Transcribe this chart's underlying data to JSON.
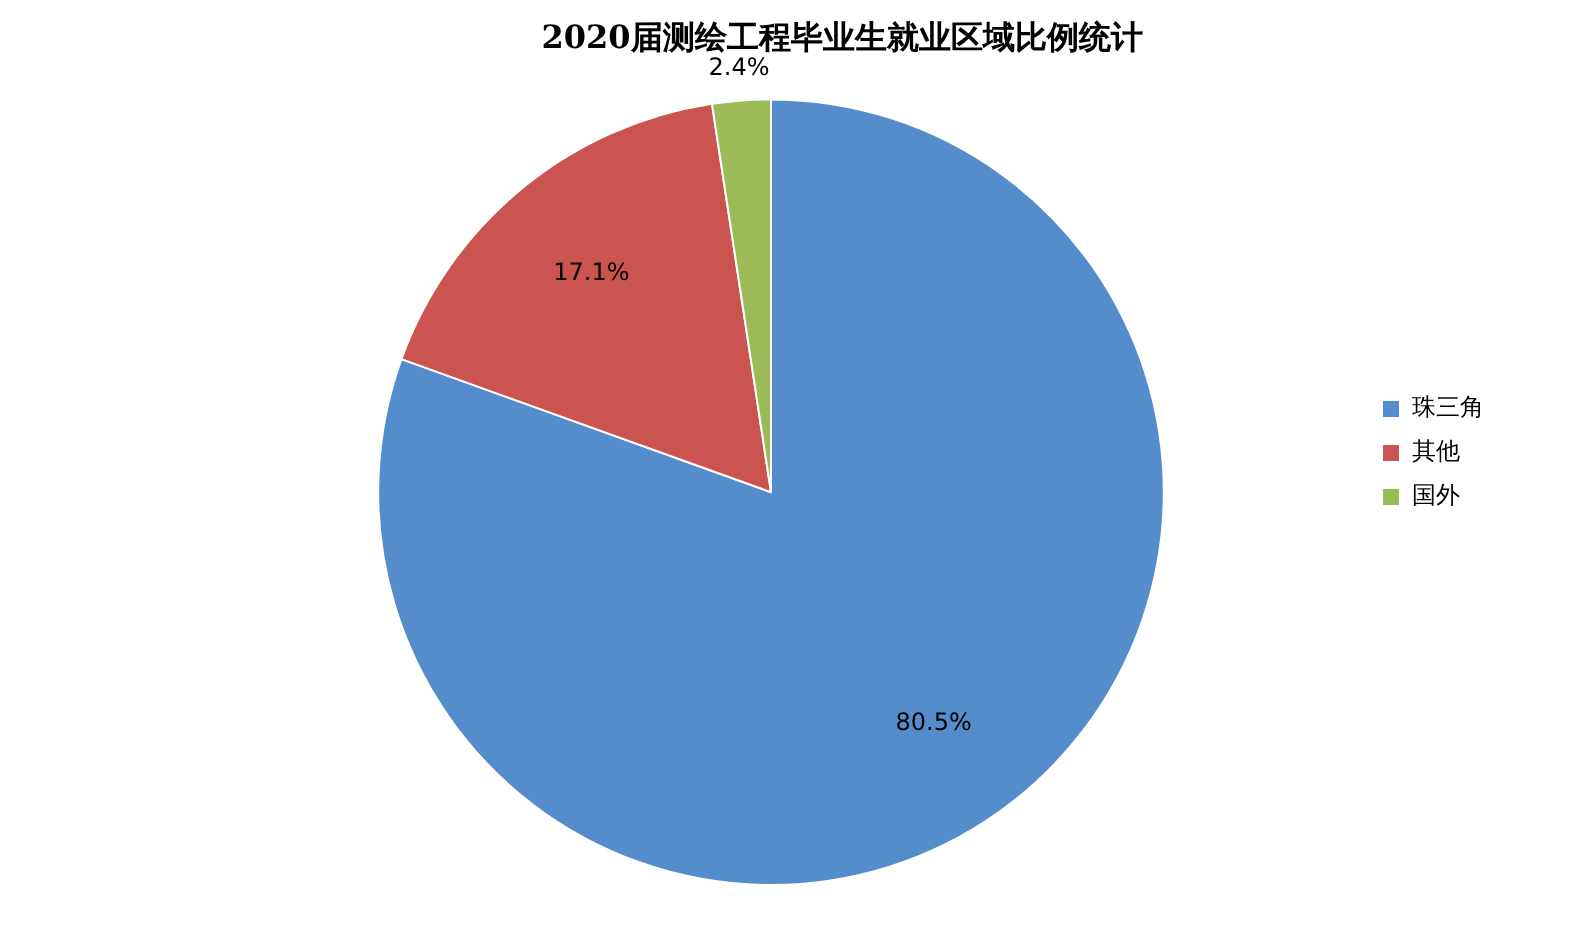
{
  "chart_data": {
    "type": "pie",
    "title": "2020届测绘工程毕业生就业区域比例统计",
    "categories": [
      "珠三角",
      "其他",
      "国外"
    ],
    "values": [
      80.5,
      17.1,
      2.4
    ],
    "colors": [
      "#558ccc",
      "#cb5350",
      "#9bbb59"
    ],
    "value_labels": [
      "80.5%",
      "17.1%",
      "2.4%"
    ],
    "legend": "right"
  }
}
